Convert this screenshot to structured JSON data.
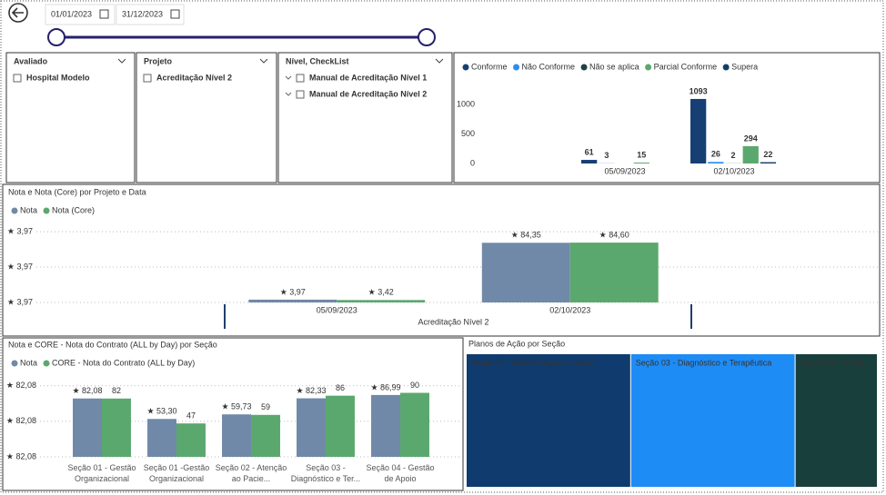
{
  "date_range": {
    "start": "01/01/2023",
    "end": "31/12/2023"
  },
  "slicers": [
    {
      "title": "Avaliado",
      "items": [
        "Hospital Modelo"
      ]
    },
    {
      "title": "Projeto",
      "items": [
        "Acreditação Nível 2"
      ]
    },
    {
      "title": "Nível, CheckList",
      "items": [
        "Manual de Acreditação Nível 1",
        "Manual de Acreditação Nível 2"
      ],
      "expandable": true
    }
  ],
  "chart_data": [
    {
      "type": "bar",
      "categories": [
        "05/09/2023",
        "02/10/2023"
      ],
      "series": [
        {
          "name": "Conforme",
          "color": "#173f73",
          "label_color": "#1f3e6e",
          "values": [
            61,
            1093
          ]
        },
        {
          "name": "Não Conforme",
          "color": "#2b8ef0",
          "label_color": "#2b7fd6",
          "values": [
            3,
            26
          ]
        },
        {
          "name": "Não se aplica",
          "color": "#1d4440",
          "label_color": "#666666",
          "values": [
            null,
            2
          ]
        },
        {
          "name": "Parcial Conforme",
          "color": "#5ba86e",
          "label_color": "#666666",
          "values": [
            15,
            294
          ]
        },
        {
          "name": "Supera",
          "color": "#143d66",
          "label_color": "#4c9a5f",
          "values": [
            null,
            22
          ]
        }
      ],
      "ylim": [
        0,
        1200
      ],
      "yticks": [
        0,
        500,
        1000
      ],
      "grid": false,
      "legend": "top-left"
    },
    {
      "type": "bar",
      "title": "Nota e Nota (Core) por Projeto e Data",
      "categories": [
        "05/09/2023",
        "02/10/2023"
      ],
      "group_label": "Acreditação Nível 2",
      "series": [
        {
          "name": "Nota",
          "color": "#7189a8",
          "values": [
            3.97,
            84.35
          ],
          "value_labels": [
            "★ 3,97",
            "★ 84,35"
          ]
        },
        {
          "name": "Nota (Core)",
          "color": "#5ba86e",
          "values": [
            3.42,
            84.6
          ],
          "value_labels": [
            "★ 3,42",
            "★ 84,60"
          ]
        }
      ],
      "value_label_color": "#c0392b",
      "ylim": [
        0,
        113
      ],
      "yticks": [
        {
          "value": 0,
          "label": "★ 3,97"
        },
        {
          "value": 50,
          "label": "★ 3,97"
        },
        {
          "value": 100,
          "label": "★ 3,97"
        }
      ],
      "grid": true,
      "legend": "top-left"
    },
    {
      "type": "bar",
      "title": "Nota e CORE - Nota do Contrato (ALL by Day) por Seção",
      "categories": [
        "Seção 01 - Gestão Organizacional",
        "Seção 01 -Gestão Organizacional",
        "Seção 02 - Atenção ao Pacie...",
        "Seção 03 - Diagnóstico e Ter...",
        "Seção 04 - Gestão de Apoio"
      ],
      "series": [
        {
          "name": "Nota",
          "color": "#7189a8",
          "values": [
            82.08,
            53.3,
            59.73,
            82.33,
            86.99
          ],
          "value_labels": [
            "★ 82,08",
            "★ 53,30",
            "★ 59,73",
            "★ 82,33",
            "★ 86,99"
          ],
          "value_label_colors": [
            "#c0392b",
            "#c0392b",
            "#c0392b",
            "#c0392b",
            "#3f9a57"
          ]
        },
        {
          "name": "CORE - Nota do Contrato (ALL by Day)",
          "color": "#5ba86e",
          "values": [
            82,
            47,
            59,
            86,
            90
          ]
        }
      ],
      "ylim": [
        0,
        106
      ],
      "yticks": [
        {
          "value": 0,
          "label": "★ 82,08"
        },
        {
          "value": 50,
          "label": "★ 82,08"
        },
        {
          "value": 100,
          "label": "★ 82,08"
        }
      ],
      "grid": true,
      "legend": "top-left"
    },
    {
      "type": "treemap",
      "title": "Planos de Ação por Seção",
      "categories": [
        "Seção 01 -Gestão Organizacional",
        "Seção 03 - Diagnóstico e Terapêutica",
        "Seção 01 - Gestã..."
      ],
      "values": [
        2,
        2,
        1
      ],
      "colors": [
        "#0f3b6e",
        "#1e8cf5",
        "#183f3c"
      ]
    }
  ]
}
